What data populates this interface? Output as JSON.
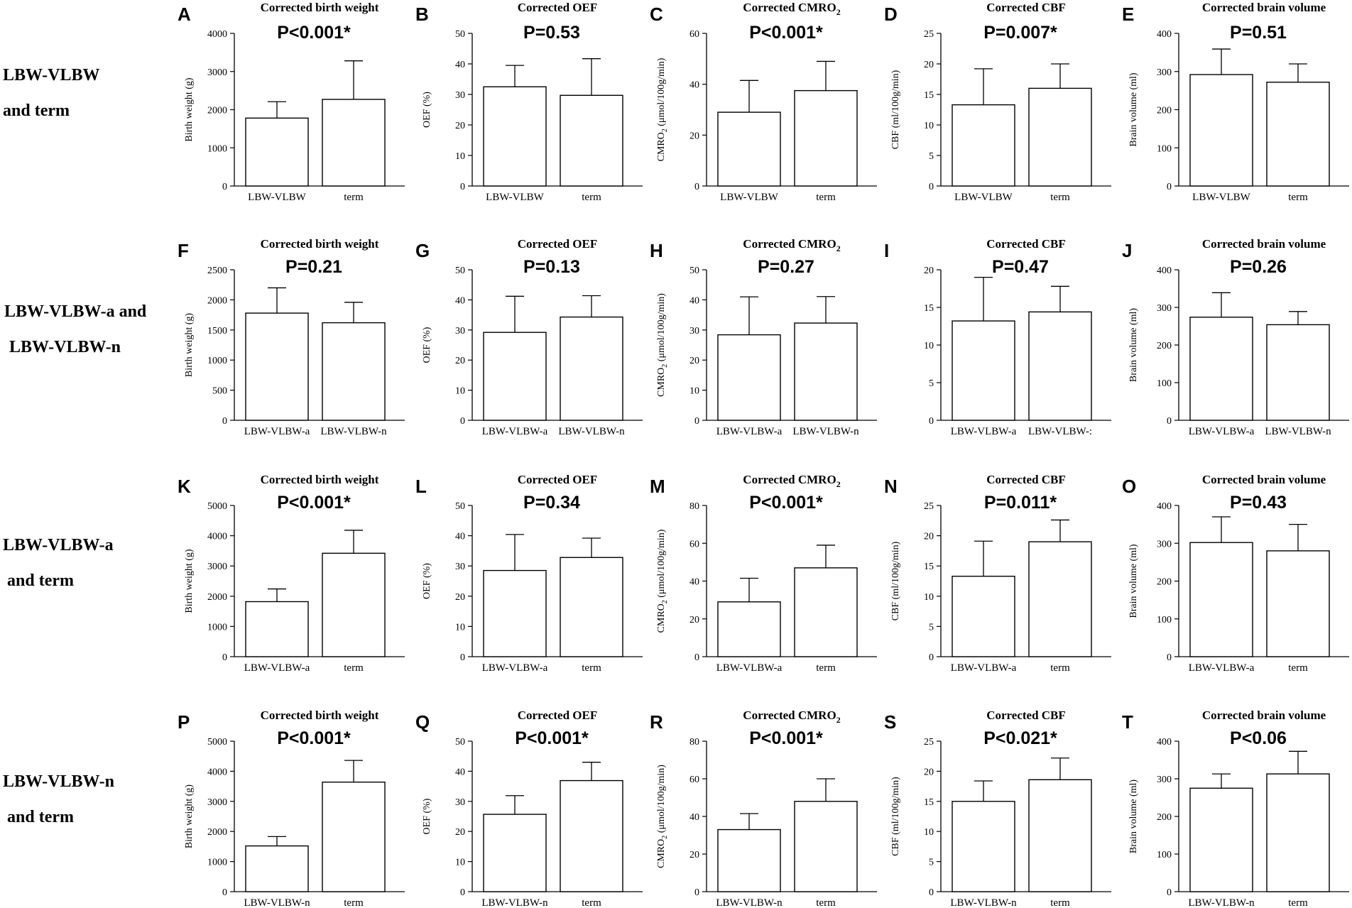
{
  "row_labels": [
    [
      "LBW-VLBW",
      "and term"
    ],
    [
      "LBW-VLBW-a and",
      "LBW-VLBW-n"
    ],
    [
      "LBW-VLBW-a",
      " and term"
    ],
    [
      "LBW-VLBW-n",
      " and term"
    ]
  ],
  "chart_data": [
    {
      "letter": "A",
      "type": "bar",
      "title": "Corrected birth weight",
      "p_value": "P<0.001*",
      "ylabel": "Birth weight (g)",
      "categories": [
        "LBW-VLBW",
        "term"
      ],
      "values": [
        1780,
        2270
      ],
      "errors": [
        430,
        1010
      ],
      "ylim": [
        0,
        4000
      ],
      "ticks": [
        0,
        1000,
        2000,
        3000,
        4000
      ]
    },
    {
      "letter": "B",
      "type": "bar",
      "title": "Corrected OEF",
      "p_value": "P=0.53",
      "ylabel": "OEF (%)",
      "categories": [
        "LBW-VLBW",
        "term"
      ],
      "values": [
        32.5,
        29.7
      ],
      "errors": [
        7,
        12
      ],
      "ylim": [
        0,
        50
      ],
      "ticks": [
        0,
        10,
        20,
        30,
        40,
        50
      ]
    },
    {
      "letter": "C",
      "type": "bar",
      "title": "Corrected CMRO",
      "title_sub": "2",
      "p_value": "P<0.001*",
      "ylabel": "CMRO",
      "ylabel_sub": "2",
      "ylabel_rest": " (μmol/100g/min)",
      "categories": [
        "LBW-VLBW",
        "term"
      ],
      "values": [
        29,
        37.5
      ],
      "errors": [
        12.5,
        11.5
      ],
      "ylim": [
        0,
        60
      ],
      "ticks": [
        0,
        20,
        40,
        60
      ]
    },
    {
      "letter": "D",
      "type": "bar",
      "title": "Corrected CBF",
      "p_value": "P=0.007*",
      "ylabel": "CBF (ml/100g/min)",
      "categories": [
        "LBW-VLBW",
        "term"
      ],
      "values": [
        13.3,
        16
      ],
      "errors": [
        5.9,
        4
      ],
      "ylim": [
        0,
        25
      ],
      "ticks": [
        0,
        5,
        10,
        15,
        20,
        25
      ]
    },
    {
      "letter": "E",
      "type": "bar",
      "title": "Corrected brain volume",
      "p_value": "P=0.51",
      "ylabel": "Brain volume (ml)",
      "categories": [
        "LBW-VLBW",
        "term"
      ],
      "values": [
        292,
        272
      ],
      "errors": [
        67,
        48
      ],
      "ylim": [
        0,
        400
      ],
      "ticks": [
        0,
        100,
        200,
        300,
        400
      ]
    },
    {
      "letter": "F",
      "type": "bar",
      "title": "Corrected birth weight",
      "p_value": "P=0.21",
      "ylabel": "Birth weight (g)",
      "categories": [
        "LBW-VLBW-a",
        "LBW-VLBW-n"
      ],
      "values": [
        1780,
        1620
      ],
      "errors": [
        420,
        340
      ],
      "ylim": [
        0,
        2500
      ],
      "ticks": [
        0,
        500,
        1000,
        1500,
        2000,
        2500
      ]
    },
    {
      "letter": "G",
      "type": "bar",
      "title": "Corrected OEF",
      "p_value": "P=0.13",
      "ylabel": "OEF (%)",
      "categories": [
        "LBW-VLBW-a",
        "LBW-VLBW-n"
      ],
      "values": [
        29.2,
        34.3
      ],
      "errors": [
        12,
        7.1
      ],
      "ylim": [
        0,
        50
      ],
      "ticks": [
        0,
        10,
        20,
        30,
        40,
        50
      ]
    },
    {
      "letter": "H",
      "type": "bar",
      "title": "Corrected CMRO",
      "title_sub": "2",
      "p_value": "P=0.27",
      "ylabel": "CMRO",
      "ylabel_sub": "2",
      "ylabel_rest": " (μmol/100g/min)",
      "categories": [
        "LBW-VLBW-a",
        "LBW-VLBW-n"
      ],
      "values": [
        28.4,
        32.3
      ],
      "errors": [
        12.6,
        8.8
      ],
      "ylim": [
        0,
        50
      ],
      "ticks": [
        0,
        10,
        20,
        30,
        40,
        50
      ]
    },
    {
      "letter": "I",
      "type": "bar",
      "title": "Corrected CBF",
      "p_value": "P=0.47",
      "ylabel": "",
      "categories": [
        "LBW-VLBW-a",
        "LBW-VLBW-:"
      ],
      "values": [
        13.2,
        14.4
      ],
      "errors": [
        5.8,
        3.4
      ],
      "ylim": [
        0,
        20
      ],
      "ticks": [
        0,
        5,
        10,
        15,
        20
      ]
    },
    {
      "letter": "J",
      "type": "bar",
      "title": "Corrected brain volume",
      "p_value": "P=0.26",
      "ylabel": "Brain volume (ml)",
      "categories": [
        "LBW-VLBW-a",
        "LBW-VLBW-n"
      ],
      "values": [
        274,
        254
      ],
      "errors": [
        65,
        35
      ],
      "ylim": [
        0,
        400
      ],
      "ticks": [
        0,
        100,
        200,
        300,
        400
      ]
    },
    {
      "letter": "K",
      "type": "bar",
      "title": "Corrected birth weight",
      "p_value": "P<0.001*",
      "ylabel": "Birth weight (g)",
      "categories": [
        "LBW-VLBW-a",
        "term"
      ],
      "values": [
        1820,
        3420
      ],
      "errors": [
        420,
        760
      ],
      "ylim": [
        0,
        5000
      ],
      "ticks": [
        0,
        1000,
        2000,
        3000,
        4000,
        5000
      ]
    },
    {
      "letter": "L",
      "type": "bar",
      "title": "Corrected OEF",
      "p_value": "P=0.34",
      "ylabel": "OEF (%)",
      "categories": [
        "LBW-VLBW-a",
        "term"
      ],
      "values": [
        28.5,
        32.8
      ],
      "errors": [
        11.9,
        6.4
      ],
      "ylim": [
        0,
        50
      ],
      "ticks": [
        0,
        10,
        20,
        30,
        40,
        50
      ]
    },
    {
      "letter": "M",
      "type": "bar",
      "title": "Corrected CMRO",
      "title_sub": "2",
      "p_value": "P<0.001*",
      "ylabel": "CMRO",
      "ylabel_sub": "2",
      "ylabel_rest": " (μmol/100g/min)",
      "categories": [
        "LBW-VLBW-a",
        "term"
      ],
      "values": [
        29,
        47
      ],
      "errors": [
        12.5,
        12
      ],
      "ylim": [
        0,
        80
      ],
      "ticks": [
        0,
        20,
        40,
        60,
        80
      ]
    },
    {
      "letter": "N",
      "type": "bar",
      "title": "Corrected CBF",
      "p_value": "P=0.011*",
      "ylabel": "CBF (ml/100g/min)",
      "categories": [
        "LBW-VLBW-a",
        "term"
      ],
      "values": [
        13.3,
        19
      ],
      "errors": [
        5.8,
        3.6
      ],
      "ylim": [
        0,
        25
      ],
      "ticks": [
        0,
        5,
        10,
        15,
        20,
        25
      ]
    },
    {
      "letter": "O",
      "type": "bar",
      "title": "Corrected brain volume",
      "p_value": "P=0.43",
      "ylabel": "Brain volume (ml)",
      "categories": [
        "LBW-VLBW-a",
        "term"
      ],
      "values": [
        302,
        280
      ],
      "errors": [
        68,
        70
      ],
      "ylim": [
        0,
        400
      ],
      "ticks": [
        0,
        100,
        200,
        300,
        400
      ]
    },
    {
      "letter": "P",
      "type": "bar",
      "title": "Corrected birth weight",
      "p_value": "P<0.001*",
      "ylabel": "Birth weight (g)",
      "categories": [
        "LBW-VLBW-n",
        "term"
      ],
      "values": [
        1520,
        3640
      ],
      "errors": [
        310,
        720
      ],
      "ylim": [
        0,
        5000
      ],
      "ticks": [
        0,
        1000,
        2000,
        3000,
        4000,
        5000
      ]
    },
    {
      "letter": "Q",
      "type": "bar",
      "title": "Corrected OEF",
      "p_value": "P<0.001*",
      "ylabel": "OEF (%)",
      "categories": [
        "LBW-VLBW-n",
        "term"
      ],
      "values": [
        25.7,
        36.9
      ],
      "errors": [
        6.2,
        6.1
      ],
      "ylim": [
        0,
        50
      ],
      "ticks": [
        0,
        10,
        20,
        30,
        40,
        50
      ]
    },
    {
      "letter": "R",
      "type": "bar",
      "title": "Corrected CMRO",
      "title_sub": "2",
      "p_value": "P<0.001*",
      "ylabel": "CMRO",
      "ylabel_sub": "2",
      "ylabel_rest": " (μmol/100g/min)",
      "categories": [
        "LBW-VLBW-n",
        "term"
      ],
      "values": [
        33,
        48
      ],
      "errors": [
        8.5,
        12
      ],
      "ylim": [
        0,
        80
      ],
      "ticks": [
        0,
        20,
        40,
        60,
        80
      ]
    },
    {
      "letter": "S",
      "type": "bar",
      "title": "Corrected CBF",
      "p_value": "P<0.021*",
      "ylabel": "CBF (ml/100g/min)",
      "categories": [
        "LBW-VLBW-n",
        "term"
      ],
      "values": [
        15,
        18.6
      ],
      "errors": [
        3.4,
        3.6
      ],
      "ylim": [
        0,
        25
      ],
      "ticks": [
        0,
        5,
        10,
        15,
        20,
        25
      ]
    },
    {
      "letter": "T",
      "type": "bar",
      "title": "Corrected brain volume",
      "p_value": "P<0.06",
      "ylabel": "Brain volume (ml)",
      "categories": [
        "LBW-VLBW-n",
        "term"
      ],
      "values": [
        275,
        313
      ],
      "errors": [
        38,
        60
      ],
      "ylim": [
        0,
        400
      ],
      "ticks": [
        0,
        100,
        200,
        300,
        400
      ]
    }
  ]
}
